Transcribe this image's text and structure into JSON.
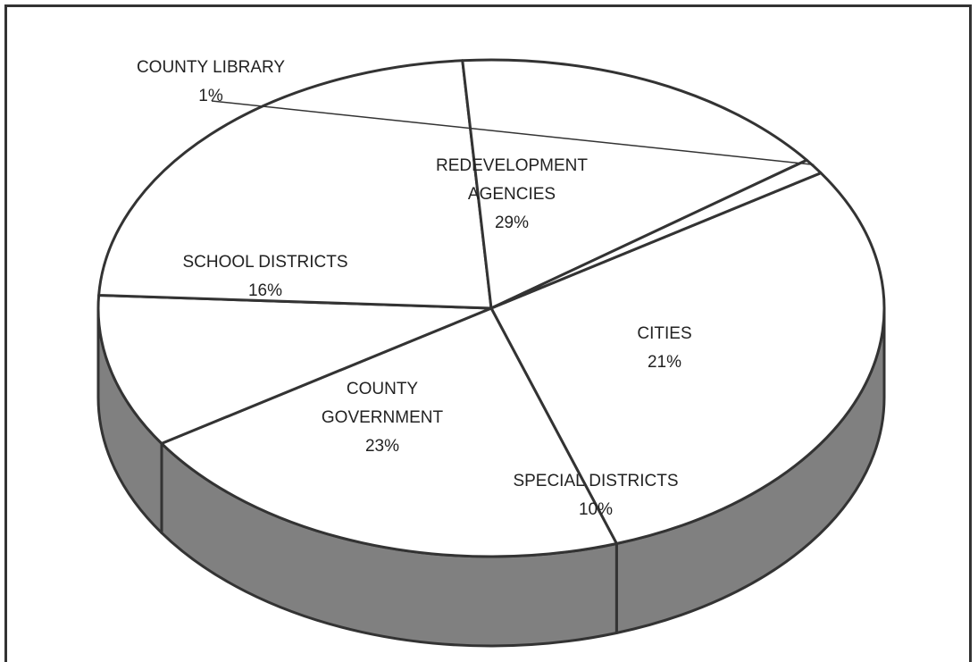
{
  "chart_data": {
    "type": "pie",
    "style": "3d-exploded-none",
    "colors": {
      "top": "#ffffff",
      "side": "#808080",
      "stroke": "#333333"
    },
    "slices": [
      {
        "label_lines": [
          "REDEVELOPMENT",
          "AGENCIES"
        ],
        "value": 29,
        "pct": "29%"
      },
      {
        "label_lines": [
          "CITIES"
        ],
        "value": 21,
        "pct": "21%"
      },
      {
        "label_lines": [
          "SPECIAL DISTRICTS"
        ],
        "value": 10,
        "pct": "10%"
      },
      {
        "label_lines": [
          "COUNTY",
          "GOVERNMENT"
        ],
        "value": 23,
        "pct": "23%"
      },
      {
        "label_lines": [
          "SCHOOL DISTRICTS"
        ],
        "value": 16,
        "pct": "16%"
      },
      {
        "label_lines": [
          "COUNTY LIBRARY"
        ],
        "value": 1,
        "pct": "1%"
      }
    ]
  }
}
